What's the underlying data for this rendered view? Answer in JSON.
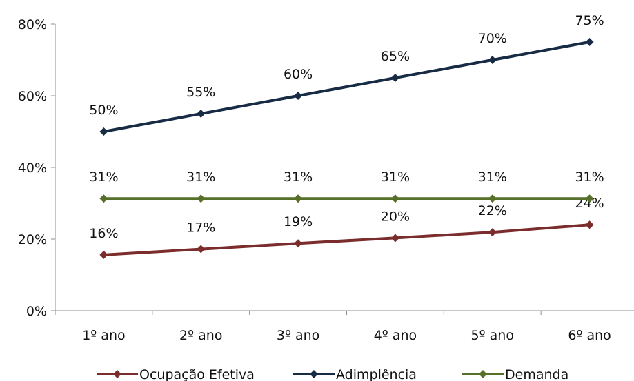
{
  "chart_data": {
    "type": "line",
    "categories": [
      "1º ano",
      "2º ano",
      "3º ano",
      "4º ano",
      "5º ano",
      "6º ano"
    ],
    "series": [
      {
        "name": "Ocupação Efetiva",
        "color": "#7b2c2c",
        "values": [
          15.6,
          17.2,
          18.8,
          20.3,
          21.9,
          24.0
        ],
        "labels": [
          "16%",
          "17%",
          "19%",
          "20%",
          "22%",
          "24%"
        ]
      },
      {
        "name": "Adimplência",
        "color": "#172b45",
        "values": [
          50,
          55,
          60,
          65,
          70,
          75
        ],
        "labels": [
          "50%",
          "55%",
          "60%",
          "65%",
          "70%",
          "75%"
        ]
      },
      {
        "name": "Demanda",
        "color": "#56702a",
        "values": [
          31.3,
          31.3,
          31.3,
          31.3,
          31.3,
          31.3
        ],
        "labels": [
          "31%",
          "31%",
          "31%",
          "31%",
          "31%",
          "31%"
        ]
      }
    ],
    "ylim": [
      0,
      80
    ],
    "yticks": [
      "0%",
      "20%",
      "40%",
      "60%",
      "80%"
    ],
    "xlabel": "",
    "ylabel": "",
    "title": "",
    "grid": false,
    "legend": "bottom"
  }
}
